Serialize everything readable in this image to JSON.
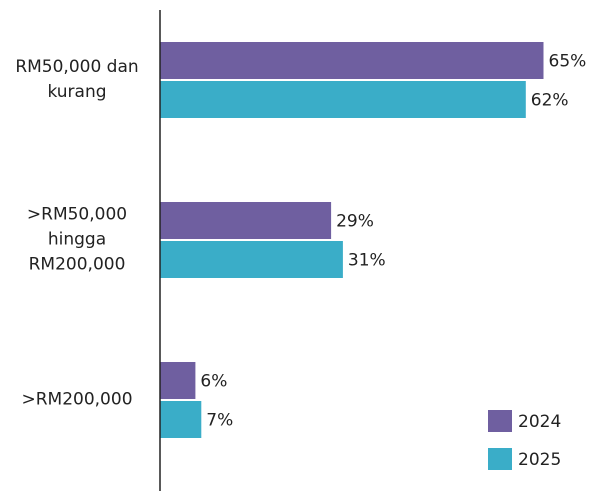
{
  "chart_data": {
    "type": "bar",
    "orientation": "horizontal",
    "categories": [
      "RM50,000 dan kurang",
      ">RM50,000 hingga RM200,000",
      ">RM200,000"
    ],
    "series": [
      {
        "name": "2024",
        "color": "#6f5fa0",
        "values": [
          65,
          29,
          6
        ],
        "value_labels": [
          "65%",
          "29%",
          "6%"
        ]
      },
      {
        "name": "2025",
        "color": "#3aadc8",
        "values": [
          62,
          31,
          7
        ],
        "value_labels": [
          "62%",
          "31%",
          "7%"
        ]
      }
    ],
    "xlim": [
      0,
      100
    ],
    "legend": "lower right"
  }
}
